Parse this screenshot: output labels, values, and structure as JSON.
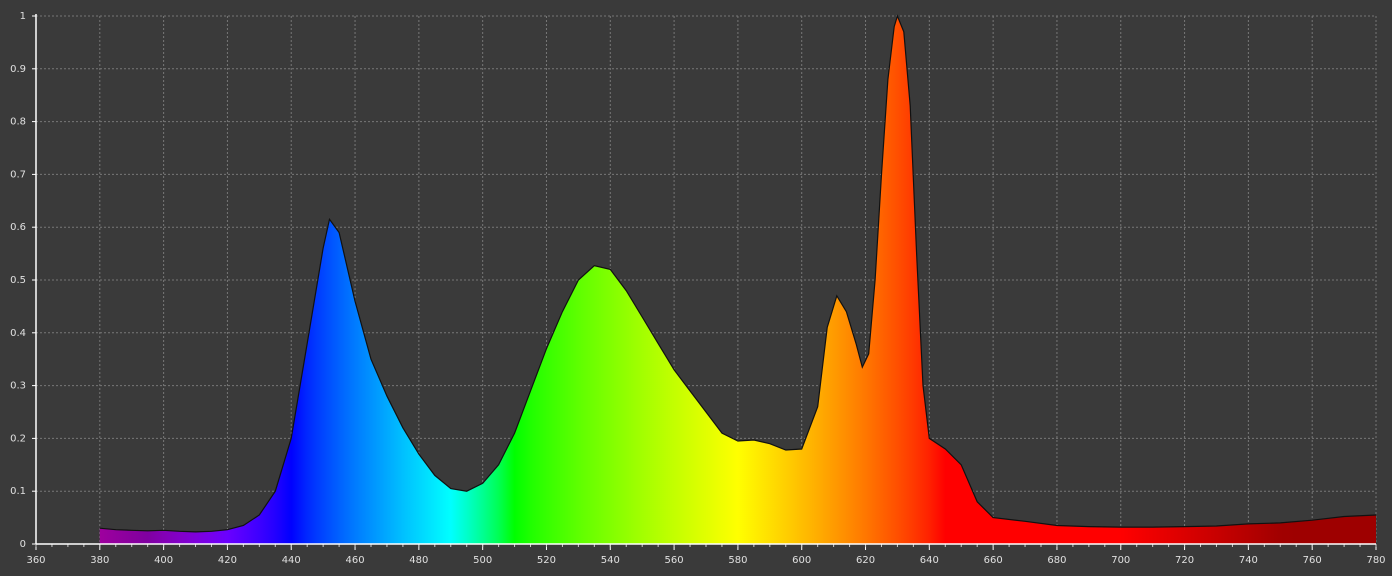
{
  "chart_data": {
    "type": "area",
    "spectrum_fill": true,
    "grid": true,
    "x": [
      380,
      385,
      390,
      395,
      400,
      405,
      410,
      415,
      420,
      425,
      430,
      435,
      440,
      445,
      450,
      452,
      455,
      460,
      465,
      470,
      475,
      480,
      485,
      490,
      495,
      500,
      505,
      510,
      515,
      520,
      525,
      530,
      535,
      540,
      545,
      550,
      555,
      560,
      565,
      570,
      575,
      580,
      585,
      590,
      595,
      600,
      605,
      608,
      611,
      614,
      617,
      619,
      621,
      623,
      625,
      627,
      629,
      630,
      632,
      634,
      636,
      638,
      640,
      645,
      650,
      655,
      660,
      670,
      680,
      690,
      700,
      710,
      720,
      730,
      740,
      750,
      760,
      770,
      780
    ],
    "values": [
      0.03,
      0.027,
      0.026,
      0.025,
      0.026,
      0.024,
      0.023,
      0.024,
      0.027,
      0.035,
      0.055,
      0.1,
      0.2,
      0.38,
      0.56,
      0.615,
      0.59,
      0.46,
      0.35,
      0.28,
      0.22,
      0.17,
      0.13,
      0.105,
      0.1,
      0.115,
      0.15,
      0.21,
      0.29,
      0.37,
      0.44,
      0.5,
      0.527,
      0.52,
      0.48,
      0.43,
      0.38,
      0.33,
      0.29,
      0.25,
      0.21,
      0.195,
      0.197,
      0.19,
      0.178,
      0.18,
      0.26,
      0.41,
      0.47,
      0.44,
      0.38,
      0.335,
      0.36,
      0.5,
      0.7,
      0.88,
      0.98,
      1.0,
      0.97,
      0.83,
      0.55,
      0.3,
      0.2,
      0.18,
      0.15,
      0.08,
      0.05,
      0.043,
      0.035,
      0.033,
      0.032,
      0.032,
      0.033,
      0.034,
      0.038,
      0.04,
      0.045,
      0.052,
      0.055
    ],
    "xlim": [
      360,
      780
    ],
    "ylim": [
      0,
      1
    ],
    "xticks": [
      360,
      380,
      400,
      420,
      440,
      460,
      480,
      500,
      520,
      540,
      560,
      580,
      600,
      620,
      640,
      660,
      680,
      700,
      720,
      740,
      760,
      780
    ],
    "yticks": [
      0,
      0.1,
      0.2,
      0.3,
      0.4,
      0.5,
      0.6,
      0.7,
      0.8,
      0.9,
      1
    ]
  }
}
